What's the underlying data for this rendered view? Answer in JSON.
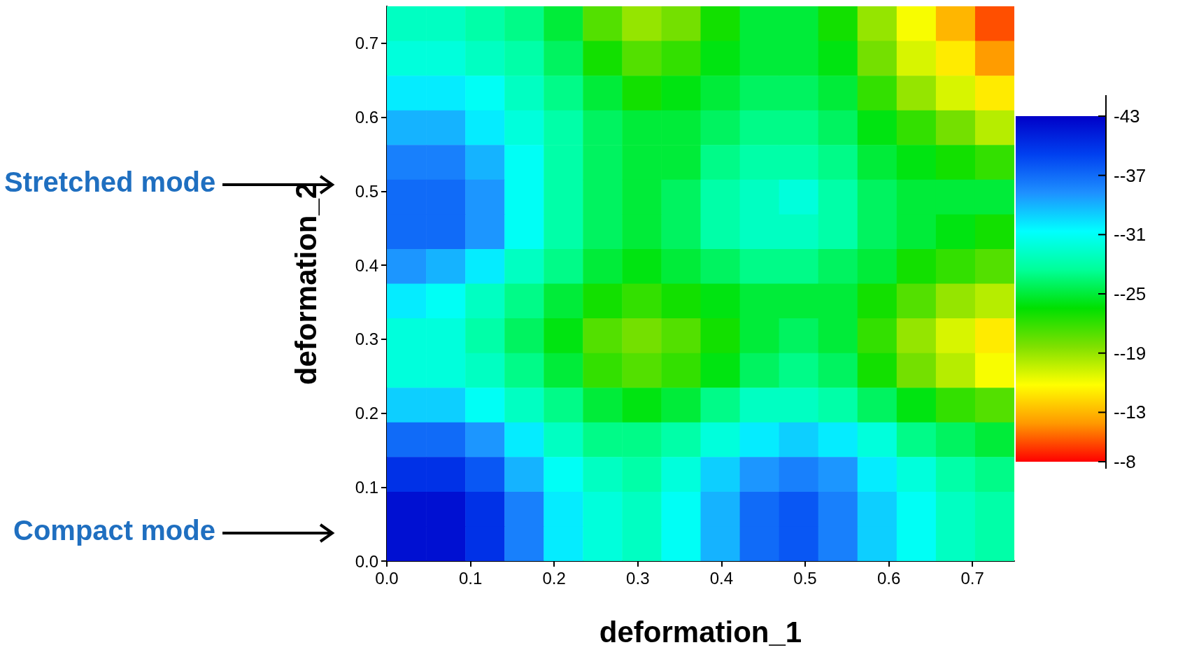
{
  "chart_data": {
    "type": "heatmap",
    "xlabel": "deformation_1",
    "ylabel": "deformation_2",
    "xlim": [
      0,
      0.75
    ],
    "ylim": [
      0,
      0.75
    ],
    "xticks": [
      {
        "value": 0,
        "label": "0.0"
      },
      {
        "value": 0.1,
        "label": "0.1"
      },
      {
        "value": 0.2,
        "label": "0.2"
      },
      {
        "value": 0.3,
        "label": "0.3"
      },
      {
        "value": 0.4,
        "label": "0.4"
      },
      {
        "value": 0.5,
        "label": "0.5"
      },
      {
        "value": 0.6,
        "label": "0.6"
      },
      {
        "value": 0.7,
        "label": "0.7"
      }
    ],
    "yticks": [
      {
        "value": 0,
        "label": "0.0"
      },
      {
        "value": 0.1,
        "label": "0.1"
      },
      {
        "value": 0.2,
        "label": "0.2"
      },
      {
        "value": 0.3,
        "label": "0.3"
      },
      {
        "value": 0.4,
        "label": "0.4"
      },
      {
        "value": 0.5,
        "label": "0.5"
      },
      {
        "value": 0.6,
        "label": "0.6"
      },
      {
        "value": 0.7,
        "label": "0.7"
      }
    ],
    "clim": [
      -43,
      -8
    ],
    "cticks": [
      -43,
      {
        "value": -37,
        "label": "--37"
      },
      {
        "value": -31,
        "label": "--31"
      },
      {
        "value": -25,
        "label": "--25"
      },
      {
        "value": -19,
        "label": "--19"
      },
      {
        "value": -13,
        "label": "--13"
      },
      {
        "value": -8,
        "label": "--8"
      }
    ],
    "cells": [
      [
        -29,
        -29,
        -28,
        -27,
        -25,
        -21,
        -19,
        -20,
        -23,
        -25,
        -25,
        -23,
        -19,
        -16,
        -13,
        -10
      ],
      [
        -30,
        -30,
        -29,
        -28,
        -26,
        -23,
        -21,
        -22,
        -24,
        -25,
        -25,
        -24,
        -20,
        -17,
        -15,
        -12
      ],
      [
        -32,
        -32,
        -31,
        -29,
        -27,
        -25,
        -23,
        -24,
        -25,
        -26,
        -26,
        -25,
        -22,
        -19,
        -17,
        -15
      ],
      [
        -34,
        -34,
        -32,
        -30,
        -28,
        -26,
        -25,
        -25,
        -26,
        -27,
        -27,
        -26,
        -24,
        -22,
        -20,
        -18
      ],
      [
        -36,
        -36,
        -34,
        -31,
        -28,
        -26,
        -25,
        -25,
        -27,
        -28,
        -28,
        -27,
        -25,
        -24,
        -23,
        -22
      ],
      [
        -37,
        -37,
        -35,
        -31,
        -28,
        -26,
        -25,
        -26,
        -28,
        -29,
        -30,
        -28,
        -26,
        -25,
        -25,
        -25
      ],
      [
        -37,
        -37,
        -35,
        -31,
        -28,
        -26,
        -25,
        -26,
        -28,
        -29,
        -29,
        -28,
        -26,
        -25,
        -24,
        -23
      ],
      [
        -35,
        -34,
        -32,
        -29,
        -27,
        -25,
        -24,
        -25,
        -26,
        -27,
        -27,
        -26,
        -25,
        -23,
        -22,
        -21
      ],
      [
        -32,
        -31,
        -29,
        -27,
        -25,
        -23,
        -22,
        -23,
        -24,
        -25,
        -25,
        -25,
        -23,
        -21,
        -19,
        -18
      ],
      [
        -30,
        -30,
        -28,
        -26,
        -24,
        -21,
        -20,
        -21,
        -23,
        -25,
        -26,
        -25,
        -22,
        -19,
        -17,
        -15
      ],
      [
        -30,
        -30,
        -29,
        -27,
        -25,
        -22,
        -21,
        -22,
        -24,
        -26,
        -27,
        -26,
        -23,
        -20,
        -18,
        -16
      ],
      [
        -33,
        -33,
        -31,
        -29,
        -27,
        -25,
        -24,
        -25,
        -27,
        -29,
        -29,
        -28,
        -26,
        -24,
        -22,
        -21
      ],
      [
        -37,
        -37,
        -35,
        -32,
        -29,
        -27,
        -27,
        -28,
        -30,
        -32,
        -33,
        -32,
        -30,
        -27,
        -26,
        -25
      ],
      [
        -40,
        -40,
        -38,
        -34,
        -31,
        -29,
        -28,
        -30,
        -33,
        -35,
        -36,
        -35,
        -32,
        -30,
        -28,
        -27
      ],
      [
        -42,
        -42,
        -40,
        -36,
        -32,
        -30,
        -29,
        -31,
        -34,
        -37,
        -38,
        -36,
        -33,
        -31,
        -29,
        -28
      ],
      [
        -42,
        -42,
        -40,
        -36,
        -32,
        -30,
        -29,
        -31,
        -34,
        -37,
        -38,
        -36,
        -33,
        -31,
        -29,
        -28
      ]
    ],
    "annotations": [
      "Stretched mode",
      "Compact mode"
    ]
  }
}
